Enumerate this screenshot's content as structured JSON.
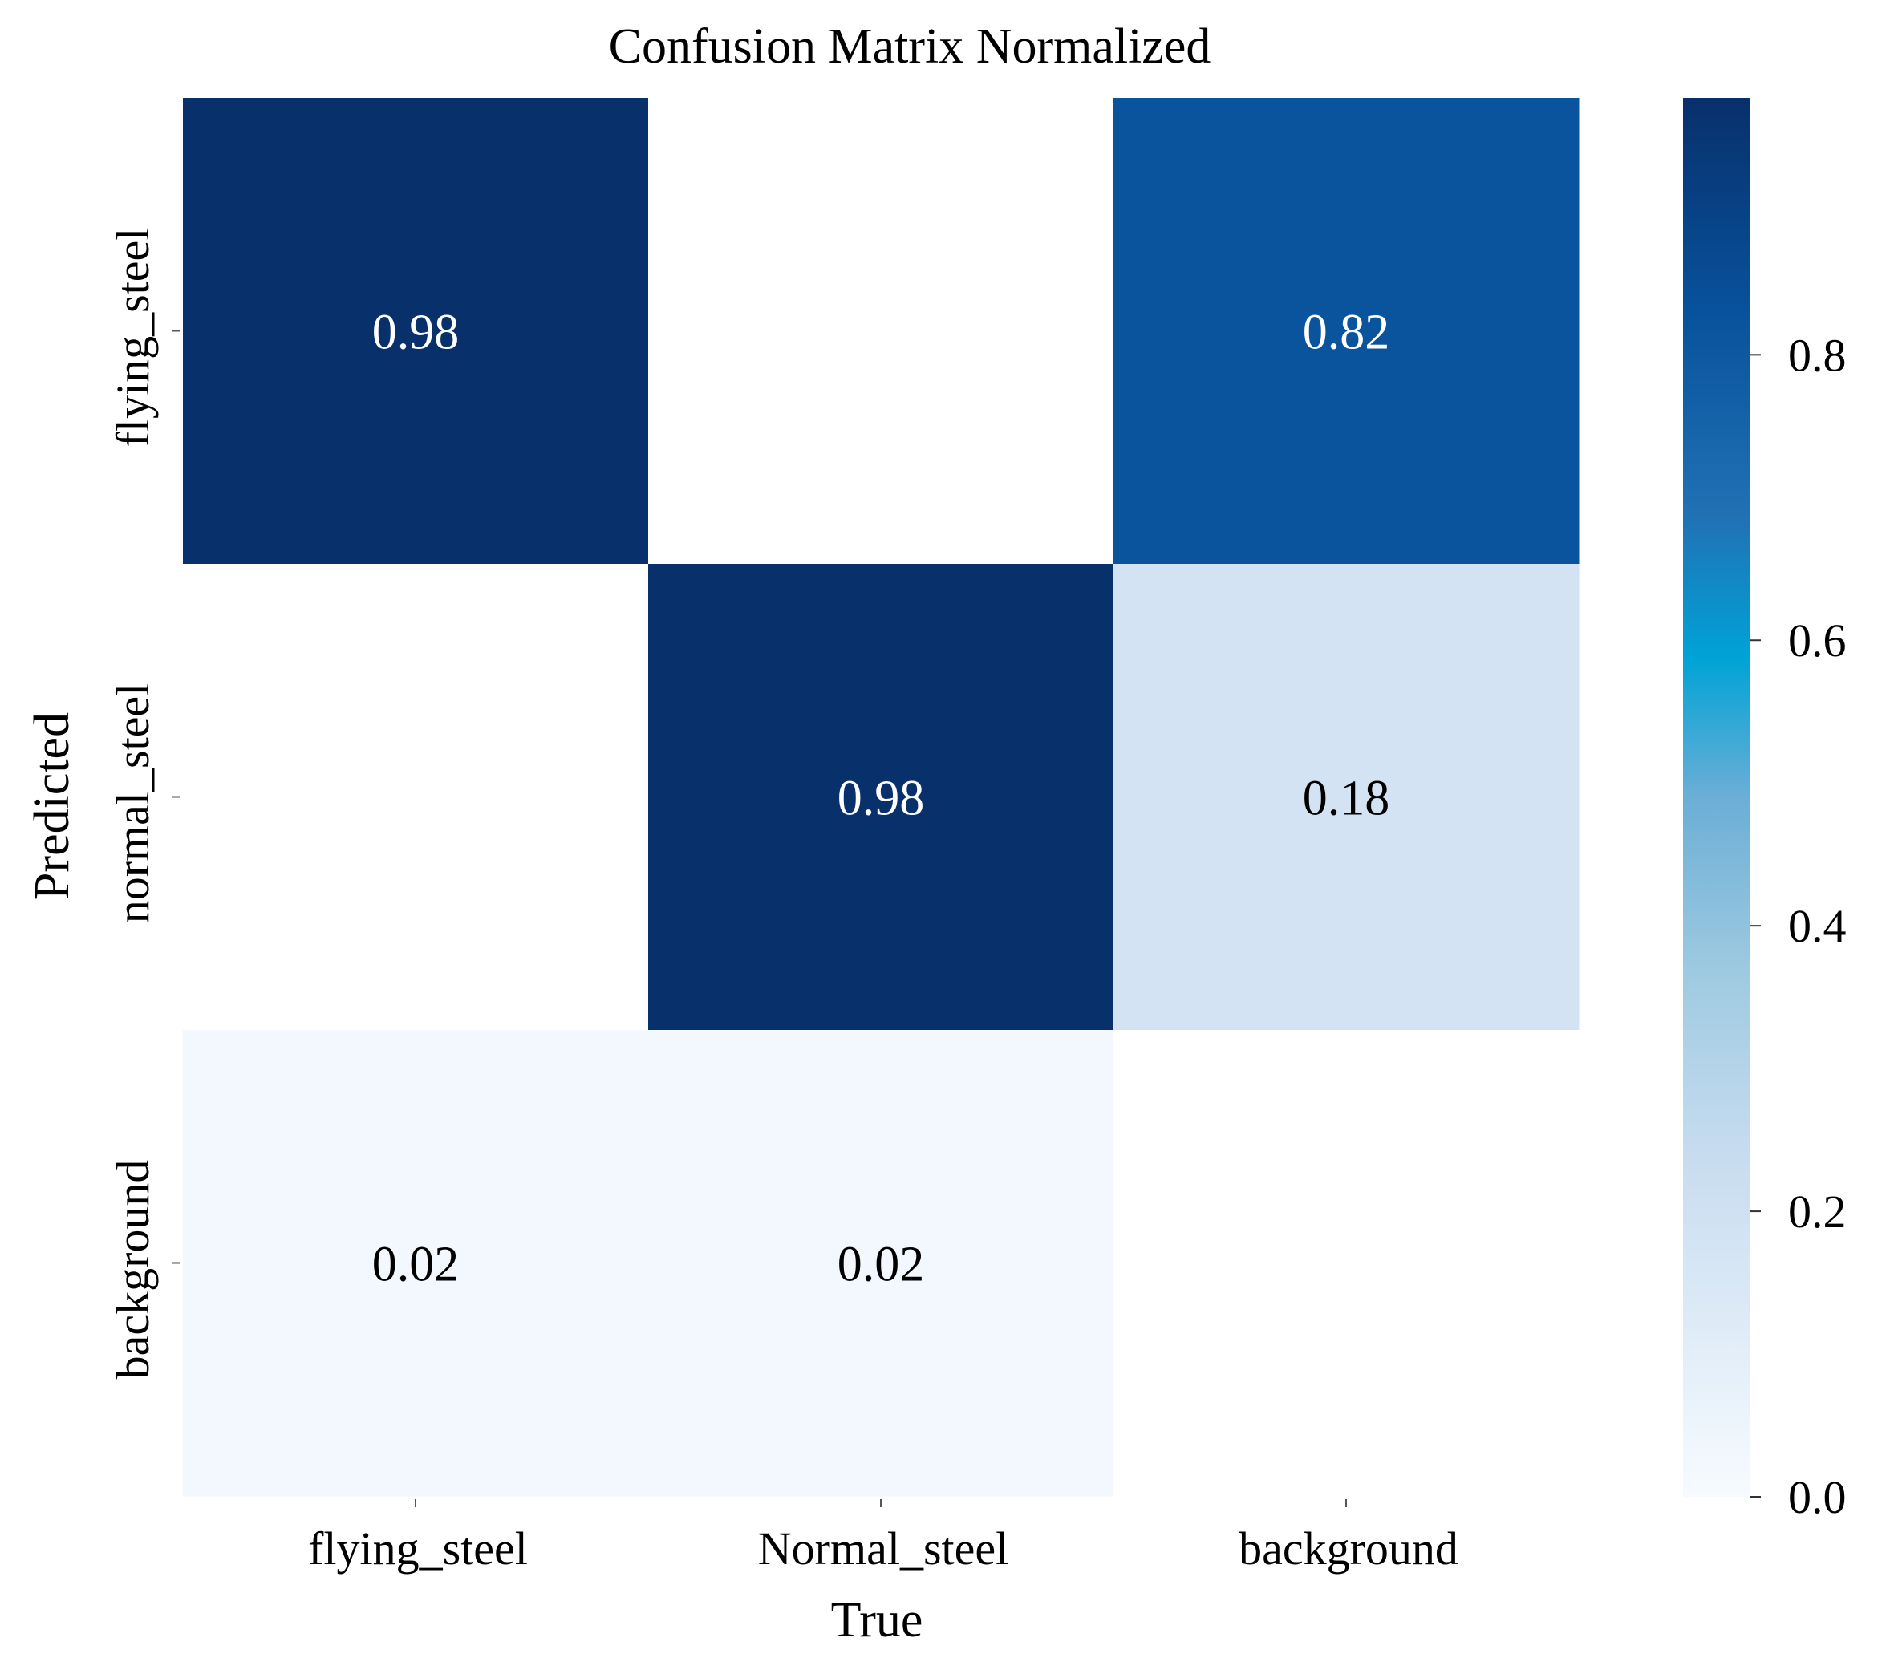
{
  "chart_data": {
    "type": "heatmap",
    "title": "Confusion Matrix Normalized",
    "xlabel": "True",
    "ylabel": "Predicted",
    "x_categories": [
      "flying_steel",
      "Normal_steel",
      "background"
    ],
    "y_categories": [
      "flying_steel",
      "normal_steel",
      "background"
    ],
    "values": [
      [
        0.98,
        null,
        0.82
      ],
      [
        null,
        0.98,
        0.18
      ],
      [
        0.02,
        0.02,
        null
      ]
    ],
    "cell_labels": [
      [
        "0.98",
        "",
        "0.82"
      ],
      [
        "",
        "0.98",
        "0.18"
      ],
      [
        "0.02",
        "0.02",
        ""
      ]
    ],
    "colormap": "Blues",
    "colorbar": {
      "range": [
        0.0,
        0.98
      ],
      "ticks": [
        0.0,
        0.2,
        0.4,
        0.6,
        0.8
      ],
      "tick_labels": [
        "0.0",
        "0.2",
        "0.4",
        "0.6",
        "0.8"
      ]
    },
    "colors": {
      "low": "#f7fbff",
      "high": "#08306b",
      "empty_cell": "#ffffff"
    }
  }
}
